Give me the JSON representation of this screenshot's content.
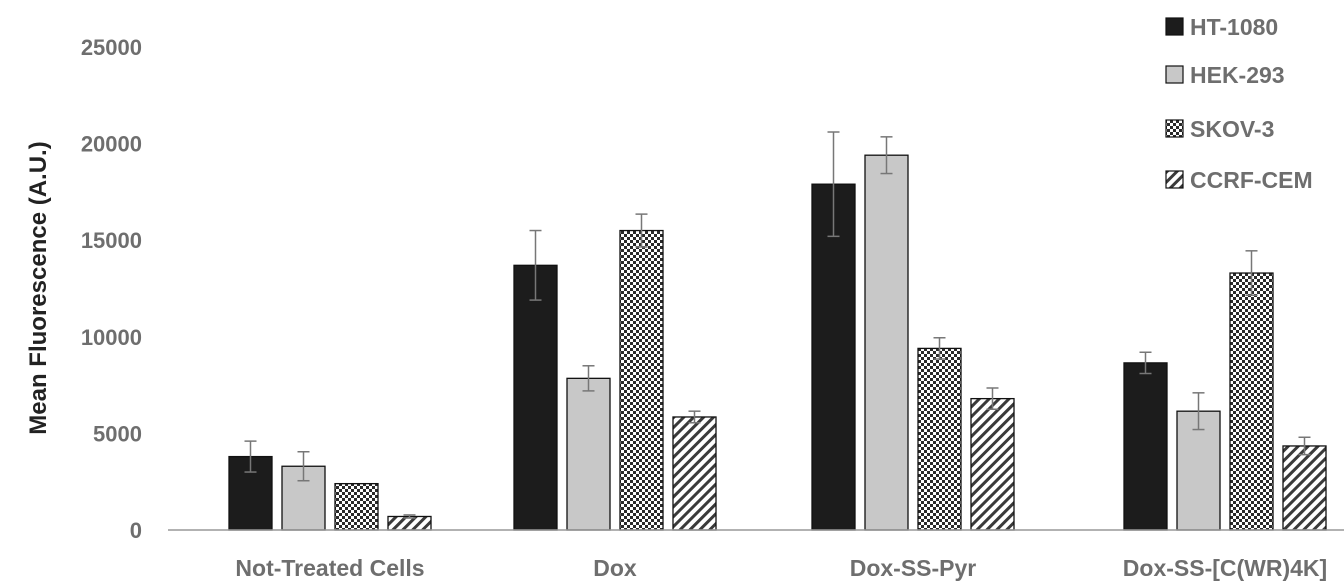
{
  "chart_data": {
    "type": "bar",
    "title": "",
    "xlabel": "",
    "ylabel": "Mean Fluorescence (A.U.)",
    "ylim": [
      0,
      25000
    ],
    "yticks": [
      0,
      5000,
      10000,
      15000,
      20000,
      25000
    ],
    "grid": false,
    "legend_position": "top-right",
    "categories": [
      "Not-Treated Cells",
      "Dox",
      "Dox-SS-Pyr",
      "Dox-SS-[C(WR)4K]"
    ],
    "series": [
      {
        "name": "HT-1080",
        "pattern": "solid-black",
        "color": "#1c1c1c",
        "values": [
          3800,
          13700,
          17900,
          8650
        ],
        "errors": [
          800,
          1800,
          2700,
          550
        ]
      },
      {
        "name": "HEK-293",
        "pattern": "solid-gray",
        "color": "#c8c8c8",
        "values": [
          3300,
          7850,
          19400,
          6150
        ],
        "errors": [
          750,
          650,
          950,
          950
        ]
      },
      {
        "name": "SKOV-3",
        "pattern": "checkered",
        "color": "#2a2a2a",
        "values": [
          2400,
          15500,
          9400,
          13300
        ],
        "errors": [
          0,
          850,
          550,
          1150
        ]
      },
      {
        "name": "CCRF-CEM",
        "pattern": "diagonal-hatch",
        "color": "#3a3a3a",
        "values": [
          700,
          5850,
          6800,
          4350
        ],
        "errors": [
          80,
          300,
          550,
          450
        ]
      }
    ]
  }
}
